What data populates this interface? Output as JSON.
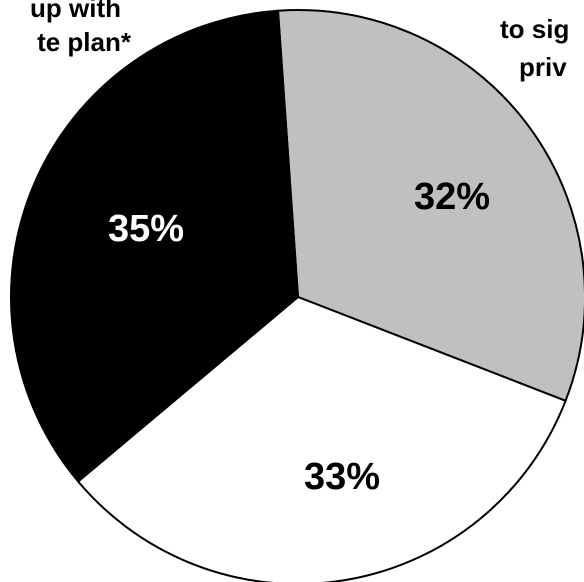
{
  "chart_data": {
    "type": "pie",
    "slices": [
      {
        "label_lines": [
          "to sig",
          "priv"
        ],
        "value": 32,
        "display": "32%",
        "color": "#c0c0c0",
        "text_color": "#000000"
      },
      {
        "label_lines": [],
        "value": 33,
        "display": "33%",
        "color": "#ffffff",
        "text_color": "#000000"
      },
      {
        "label_lines": [
          "up with",
          "te plan*"
        ],
        "value": 35,
        "display": "35%",
        "color": "#000000",
        "text_color": "#ffffff"
      }
    ],
    "stroke_color": "#000000"
  }
}
